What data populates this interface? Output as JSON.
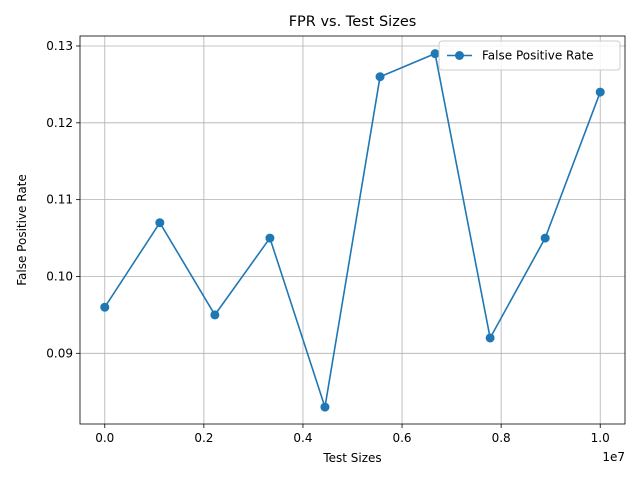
{
  "chart_data": {
    "type": "line",
    "title": "FPR vs. Test Sizes",
    "xlabel": "Test Sizes",
    "ylabel": "False Positive Rate",
    "x_offset_label": "1e7",
    "x_scale": 10000000,
    "xlim": [
      -0.05,
      1.05
    ],
    "ylim": [
      0.0808,
      0.1313
    ],
    "x_ticks": [
      0.0,
      0.2,
      0.4,
      0.6,
      0.8,
      1.0
    ],
    "x_tick_labels": [
      "0.0",
      "0.2",
      "0.4",
      "0.6",
      "0.8",
      "1.0"
    ],
    "y_ticks": [
      0.09,
      0.1,
      0.11,
      0.12,
      0.13
    ],
    "y_tick_labels": [
      "0.09",
      "0.10",
      "0.11",
      "0.12",
      "0.13"
    ],
    "grid": true,
    "legend_position": "top-right",
    "series": [
      {
        "name": "False Positive Rate",
        "color": "#1f77b4",
        "marker": "circle",
        "x": [
          0.0,
          0.1111,
          0.2222,
          0.3333,
          0.4444,
          0.5556,
          0.6667,
          0.7778,
          0.8889,
          1.0
        ],
        "y": [
          0.096,
          0.107,
          0.095,
          0.105,
          0.083,
          0.126,
          0.129,
          0.092,
          0.105,
          0.124
        ]
      }
    ]
  }
}
